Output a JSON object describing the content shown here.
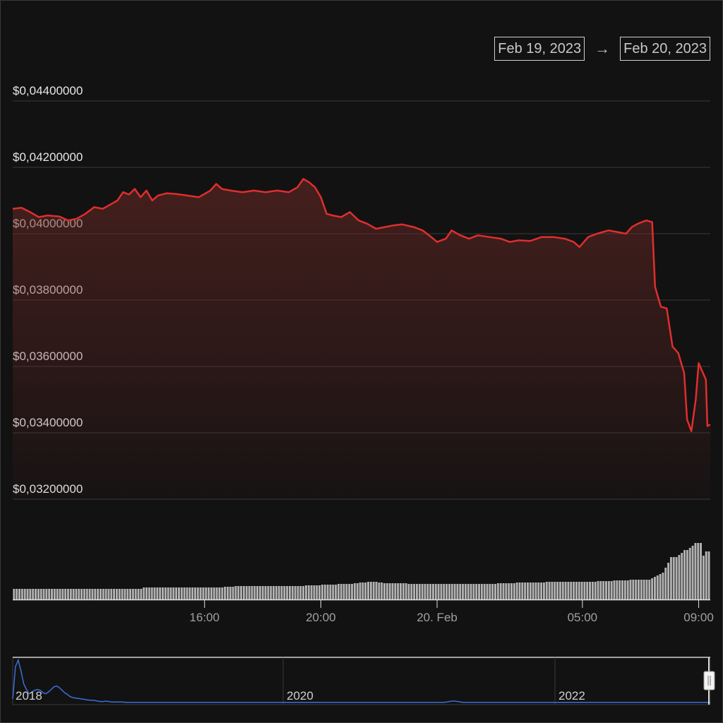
{
  "range": {
    "from": "Feb 19, 2023",
    "arrow": "→",
    "to": "Feb 20, 2023"
  },
  "colors": {
    "price_line": "#e02e2e",
    "volume_bar": "#cfcfcf",
    "navigator_line": "#3b6fd8",
    "background": "#121212",
    "grid": "#3a3a3a"
  },
  "chart_data": {
    "type": "line",
    "title": "",
    "xlabel": "",
    "ylabel": "",
    "ylim": [
      0.031,
      0.0448
    ],
    "y_ticks": [
      {
        "value": 0.044,
        "label": "$0,04400000"
      },
      {
        "value": 0.042,
        "label": "$0,04200000"
      },
      {
        "value": 0.04,
        "label": "$0,04000000"
      },
      {
        "value": 0.038,
        "label": "$0,03800000"
      },
      {
        "value": 0.036,
        "label": "$0,03600000"
      },
      {
        "value": 0.034,
        "label": "$0,03400000"
      },
      {
        "value": 0.032,
        "label": "$0,03200000"
      }
    ],
    "x_range_hours": [
      0,
      24
    ],
    "x_ticks": [
      {
        "hour": 6.6,
        "label": "16:00"
      },
      {
        "hour": 10.6,
        "label": "20:00"
      },
      {
        "hour": 14.6,
        "label": "20. Feb"
      },
      {
        "hour": 19.6,
        "label": "05:00"
      },
      {
        "hour": 23.6,
        "label": "09:00"
      }
    ],
    "series": [
      {
        "values": [
          [
            0.0,
            0.04075
          ],
          [
            0.3,
            0.04078
          ],
          [
            0.6,
            0.04065
          ],
          [
            0.9,
            0.0405
          ],
          [
            1.2,
            0.04055
          ],
          [
            1.6,
            0.04052
          ],
          [
            1.9,
            0.0404
          ],
          [
            2.2,
            0.04045
          ],
          [
            2.5,
            0.0406
          ],
          [
            2.8,
            0.0408
          ],
          [
            3.1,
            0.04075
          ],
          [
            3.4,
            0.0409
          ],
          [
            3.6,
            0.041
          ],
          [
            3.8,
            0.04125
          ],
          [
            4.0,
            0.04118
          ],
          [
            4.2,
            0.04135
          ],
          [
            4.4,
            0.0411
          ],
          [
            4.6,
            0.0413
          ],
          [
            4.8,
            0.041
          ],
          [
            5.0,
            0.04115
          ],
          [
            5.3,
            0.04122
          ],
          [
            5.6,
            0.0412
          ],
          [
            6.0,
            0.04115
          ],
          [
            6.4,
            0.0411
          ],
          [
            6.8,
            0.0413
          ],
          [
            7.0,
            0.0415
          ],
          [
            7.2,
            0.04135
          ],
          [
            7.5,
            0.0413
          ],
          [
            7.9,
            0.04125
          ],
          [
            8.3,
            0.0413
          ],
          [
            8.7,
            0.04125
          ],
          [
            9.1,
            0.0413
          ],
          [
            9.5,
            0.04125
          ],
          [
            9.8,
            0.0414
          ],
          [
            10.0,
            0.04165
          ],
          [
            10.2,
            0.04155
          ],
          [
            10.4,
            0.0414
          ],
          [
            10.6,
            0.0411
          ],
          [
            10.8,
            0.0406
          ],
          [
            11.0,
            0.04055
          ],
          [
            11.3,
            0.0405
          ],
          [
            11.6,
            0.04065
          ],
          [
            11.9,
            0.0404
          ],
          [
            12.2,
            0.0403
          ],
          [
            12.5,
            0.04015
          ],
          [
            12.8,
            0.0402
          ],
          [
            13.1,
            0.04025
          ],
          [
            13.4,
            0.04028
          ],
          [
            13.8,
            0.0402
          ],
          [
            14.1,
            0.0401
          ],
          [
            14.4,
            0.0399
          ],
          [
            14.6,
            0.03975
          ],
          [
            14.9,
            0.03985
          ],
          [
            15.1,
            0.0401
          ],
          [
            15.4,
            0.03995
          ],
          [
            15.7,
            0.03985
          ],
          [
            16.0,
            0.03995
          ],
          [
            16.4,
            0.0399
          ],
          [
            16.8,
            0.03985
          ],
          [
            17.1,
            0.03975
          ],
          [
            17.4,
            0.0398
          ],
          [
            17.8,
            0.03978
          ],
          [
            18.2,
            0.0399
          ],
          [
            18.6,
            0.0399
          ],
          [
            19.0,
            0.03985
          ],
          [
            19.3,
            0.03975
          ],
          [
            19.5,
            0.0396
          ],
          [
            19.8,
            0.0399
          ],
          [
            20.1,
            0.04
          ],
          [
            20.5,
            0.0401
          ],
          [
            20.8,
            0.04005
          ],
          [
            21.1,
            0.04
          ],
          [
            21.3,
            0.0402
          ],
          [
            21.5,
            0.0403
          ],
          [
            21.8,
            0.0404
          ],
          [
            22.0,
            0.04035
          ],
          [
            22.1,
            0.0384
          ],
          [
            22.3,
            0.0378
          ],
          [
            22.5,
            0.03775
          ],
          [
            22.7,
            0.0366
          ],
          [
            22.9,
            0.0364
          ],
          [
            23.1,
            0.0358
          ],
          [
            23.2,
            0.0344
          ],
          [
            23.35,
            0.03405
          ],
          [
            23.5,
            0.035
          ],
          [
            23.6,
            0.0361
          ],
          [
            23.75,
            0.0358
          ],
          [
            23.85,
            0.0356
          ],
          [
            23.9,
            0.0342
          ],
          [
            24.0,
            0.03425
          ]
        ]
      }
    ],
    "volume": {
      "values": [
        15,
        15,
        15,
        15,
        15,
        15,
        15,
        15,
        15,
        15,
        15,
        15,
        15,
        15,
        15,
        15,
        15,
        15,
        15,
        15,
        15,
        15,
        15,
        15,
        15,
        15,
        15,
        15,
        15,
        15,
        15,
        15,
        15,
        15,
        15,
        15,
        15,
        15,
        15,
        15,
        15,
        15,
        15,
        15,
        15,
        15,
        15,
        15,
        17,
        17,
        17,
        17,
        17,
        17,
        17,
        17,
        17,
        17,
        17,
        17,
        17,
        17,
        17,
        17,
        17,
        17,
        17,
        17,
        17,
        17,
        17,
        17,
        17,
        17,
        17,
        17,
        17,
        17,
        18,
        18,
        18,
        18,
        19,
        19,
        19,
        19,
        19,
        19,
        19,
        19,
        19,
        19,
        19,
        19,
        19,
        19,
        19,
        19,
        19,
        19,
        19,
        19,
        19,
        19,
        19,
        19,
        19,
        19,
        20,
        20,
        20,
        20,
        20,
        20,
        21,
        21,
        21,
        21,
        21,
        21,
        22,
        22,
        22,
        22,
        22,
        22,
        23,
        23,
        24,
        24,
        24,
        25,
        25,
        25,
        25,
        24,
        24,
        23,
        23,
        23,
        23,
        23,
        23,
        23,
        23,
        23,
        22,
        22,
        22,
        22,
        22,
        22,
        22,
        22,
        22,
        22,
        22,
        22,
        22,
        22,
        22,
        22,
        22,
        22,
        22,
        22,
        22,
        22,
        22,
        22,
        22,
        22,
        22,
        22,
        22,
        22,
        22,
        22,
        22,
        23,
        23,
        23,
        23,
        23,
        23,
        23,
        24,
        24,
        24,
        24,
        24,
        24,
        24,
        24,
        24,
        24,
        24,
        25,
        25,
        25,
        25,
        25,
        25,
        25,
        25,
        25,
        25,
        25,
        25,
        25,
        25,
        25,
        25,
        25,
        25,
        25,
        26,
        26,
        26,
        26,
        26,
        26,
        27,
        27,
        27,
        27,
        27,
        27,
        28,
        28,
        28,
        28,
        28,
        28,
        28,
        28,
        30,
        32,
        34,
        36,
        38,
        45,
        52,
        60,
        60,
        60,
        63,
        66,
        70,
        70,
        73,
        76,
        80,
        80,
        80,
        62,
        68,
        68
      ]
    }
  },
  "navigator": {
    "labels": [
      "2018",
      "2020",
      "2022"
    ],
    "values": [
      0.1,
      0.85,
      1.0,
      0.75,
      0.45,
      0.32,
      0.22,
      0.26,
      0.3,
      0.32,
      0.3,
      0.25,
      0.22,
      0.26,
      0.32,
      0.38,
      0.4,
      0.36,
      0.3,
      0.24,
      0.2,
      0.15,
      0.13,
      0.12,
      0.11,
      0.1,
      0.09,
      0.08,
      0.07,
      0.07,
      0.06,
      0.05,
      0.04,
      0.04,
      0.05,
      0.04,
      0.03,
      0.03,
      0.03,
      0.03,
      0.03,
      0.02,
      0.02,
      0.02,
      0.02,
      0.02,
      0.02,
      0.02,
      0.02,
      0.02,
      0.02,
      0.02,
      0.02,
      0.02,
      0.02,
      0.02,
      0.02,
      0.02,
      0.02,
      0.02,
      0.02,
      0.02,
      0.02,
      0.02,
      0.02,
      0.02,
      0.02,
      0.02,
      0.02,
      0.02,
      0.02,
      0.02,
      0.02,
      0.02,
      0.02,
      0.02,
      0.02,
      0.02,
      0.02,
      0.02,
      0.02,
      0.02,
      0.02,
      0.02,
      0.02,
      0.02,
      0.02,
      0.02,
      0.02,
      0.02,
      0.02,
      0.02,
      0.02,
      0.02,
      0.02,
      0.02,
      0.02,
      0.02,
      0.02,
      0.02,
      0.02,
      0.02,
      0.02,
      0.02,
      0.02,
      0.02,
      0.02,
      0.02,
      0.02,
      0.02,
      0.02,
      0.02,
      0.02,
      0.02,
      0.02,
      0.02,
      0.02,
      0.02,
      0.02,
      0.02,
      0.02,
      0.02,
      0.02,
      0.02,
      0.02,
      0.02,
      0.02,
      0.02,
      0.02,
      0.02,
      0.02,
      0.02,
      0.02,
      0.02,
      0.02,
      0.02,
      0.02,
      0.02,
      0.02,
      0.02,
      0.02,
      0.02,
      0.02,
      0.02,
      0.02,
      0.02,
      0.02,
      0.02,
      0.02,
      0.02,
      0.02,
      0.02,
      0.02,
      0.02,
      0.02,
      0.02,
      0.02,
      0.02,
      0.03,
      0.04,
      0.05,
      0.05,
      0.04,
      0.03,
      0.02,
      0.02,
      0.02,
      0.02,
      0.02,
      0.02,
      0.02,
      0.02,
      0.02,
      0.02,
      0.02,
      0.02,
      0.02,
      0.02,
      0.02,
      0.02,
      0.02,
      0.02,
      0.02,
      0.02,
      0.02,
      0.02,
      0.02,
      0.02,
      0.02,
      0.02,
      0.02,
      0.02,
      0.02,
      0.02,
      0.02,
      0.02,
      0.02,
      0.02,
      0.02,
      0.02,
      0.02,
      0.02,
      0.02,
      0.02,
      0.02,
      0.02,
      0.02,
      0.02,
      0.02,
      0.02,
      0.02,
      0.02,
      0.02,
      0.02,
      0.02,
      0.02,
      0.02,
      0.02,
      0.02,
      0.02,
      0.02,
      0.02,
      0.02,
      0.02,
      0.02,
      0.02,
      0.02,
      0.02,
      0.02,
      0.02,
      0.02,
      0.02,
      0.02,
      0.02,
      0.02,
      0.02,
      0.02,
      0.02,
      0.02,
      0.02,
      0.02,
      0.02,
      0.02,
      0.02,
      0.02,
      0.02,
      0.02,
      0.02,
      0.02,
      0.02,
      0.02,
      0.02,
      0.02,
      0.02,
      0.02
    ]
  }
}
